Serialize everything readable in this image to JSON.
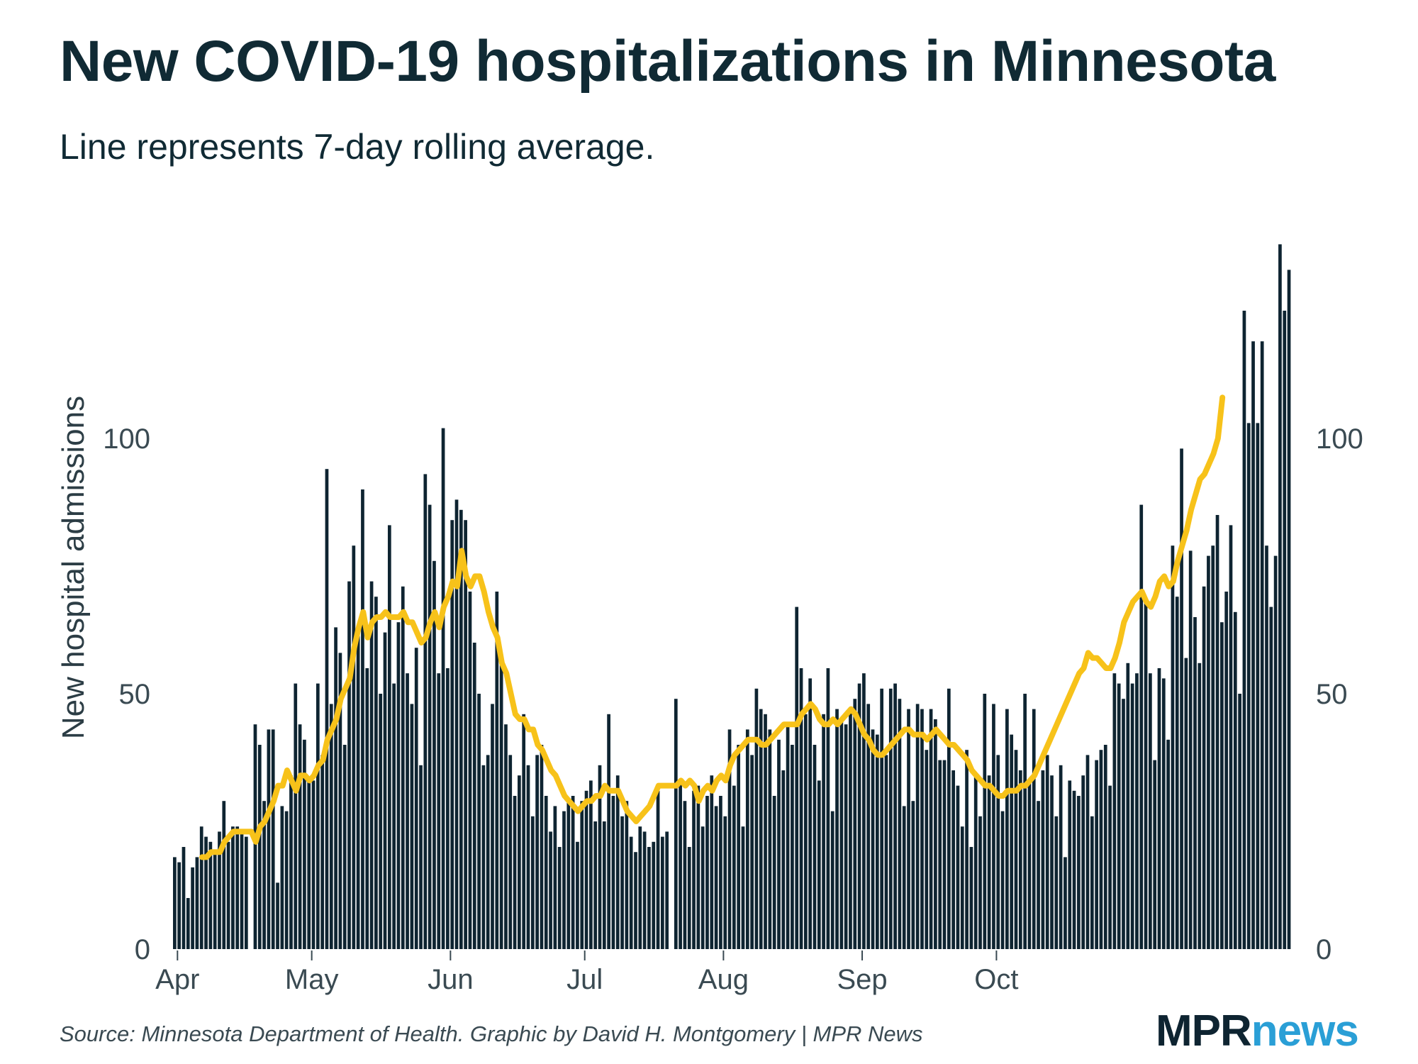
{
  "title": "New COVID-19 hospitalizations in Minnesota",
  "subtitle": "Line represents 7-day rolling average.",
  "source": "Source: Minnesota Department of Health. Graphic by David H. Montgomery | MPR News",
  "logo": {
    "part1": "MPR",
    "part2": "news"
  },
  "colors": {
    "bar": "#0e2431",
    "line": "#f7c21a",
    "text": "#102a34",
    "logo_news": "#2a9fd6"
  },
  "chart_data": {
    "type": "bar",
    "ylabel": "New hospital admissions",
    "xlabel": "",
    "ylim": [
      0,
      140
    ],
    "yticks": [
      0,
      50,
      100
    ],
    "x_start": "2020-03-31",
    "xticks": [
      {
        "label": "Apr",
        "date": "2020-04-01"
      },
      {
        "label": "May",
        "date": "2020-05-01"
      },
      {
        "label": "Jun",
        "date": "2020-06-01"
      },
      {
        "label": "Jul",
        "date": "2020-07-01"
      },
      {
        "label": "Aug",
        "date": "2020-08-01"
      },
      {
        "label": "Sep",
        "date": "2020-09-01"
      },
      {
        "label": "Oct",
        "date": "2020-10-01"
      }
    ],
    "series": [
      {
        "type": "bar",
        "values": [
          18,
          17,
          20,
          10,
          16,
          18,
          24,
          22,
          21,
          19,
          23,
          29,
          21,
          24,
          24,
          23,
          22,
          null,
          44,
          40,
          29,
          43,
          43,
          13,
          28,
          27,
          34,
          52,
          44,
          41,
          33,
          33,
          52,
          38,
          94,
          48,
          63,
          58,
          40,
          72,
          79,
          63,
          90,
          55,
          72,
          69,
          50,
          62,
          83,
          52,
          64,
          71,
          54,
          48,
          59,
          36,
          93,
          87,
          76,
          54,
          102,
          55,
          84,
          88,
          86,
          84,
          70,
          60,
          50,
          36,
          38,
          48,
          70,
          56,
          44,
          38,
          30,
          34,
          46,
          36,
          26,
          38,
          40,
          30,
          23,
          28,
          20,
          27,
          29,
          30,
          21,
          29,
          31,
          33,
          25,
          36,
          25,
          46,
          30,
          34,
          26,
          29,
          22,
          19,
          24,
          23,
          20,
          21,
          31,
          22,
          23,
          null,
          49,
          33,
          29,
          20,
          31,
          32,
          24,
          30,
          34,
          28,
          30,
          26,
          43,
          32,
          40,
          24,
          43,
          38,
          51,
          47,
          46,
          43,
          30,
          41,
          35,
          44,
          40,
          67,
          55,
          46,
          53,
          40,
          33,
          46,
          55,
          27,
          47,
          45,
          44,
          47,
          49,
          52,
          54,
          48,
          43,
          42,
          51,
          38,
          51,
          52,
          49,
          28,
          47,
          29,
          48,
          47,
          39,
          47,
          45,
          37,
          37,
          51,
          35,
          32,
          24,
          39,
          20,
          34,
          26,
          50,
          34,
          48,
          38,
          27,
          47,
          42,
          39,
          35,
          50,
          33,
          47,
          29,
          35,
          38,
          34,
          26,
          36,
          18,
          33,
          31,
          30,
          34,
          38,
          26,
          37,
          39,
          40,
          32,
          54,
          52,
          49,
          56,
          52,
          54,
          87,
          68,
          54,
          37,
          55,
          53,
          41,
          79,
          69,
          98,
          57,
          78,
          65,
          56,
          71,
          77,
          79,
          85,
          64,
          70,
          83,
          66,
          50,
          125,
          103,
          119,
          103,
          119,
          79,
          67,
          77,
          138,
          125,
          133
        ],
        "color": "#0e2431"
      },
      {
        "type": "line",
        "values": [
          null,
          null,
          null,
          null,
          null,
          null,
          18,
          18,
          19,
          19,
          19,
          21,
          22,
          23,
          23,
          23,
          23,
          23,
          21,
          24,
          25,
          27,
          29,
          32,
          32,
          35,
          33,
          31,
          34,
          34,
          33,
          34,
          36,
          37,
          41,
          43,
          45,
          49,
          51,
          53,
          59,
          63,
          66,
          61,
          64,
          65,
          65,
          66,
          65,
          65,
          65,
          66,
          64,
          64,
          62,
          60,
          61,
          64,
          66,
          63,
          67,
          69,
          72,
          71,
          78,
          73,
          71,
          73,
          73,
          70,
          66,
          63,
          61,
          56,
          54,
          50,
          46,
          45,
          45,
          43,
          43,
          40,
          39,
          37,
          35,
          34,
          32,
          30,
          29,
          28,
          27,
          28,
          29,
          29,
          30,
          30,
          32,
          31,
          31,
          31,
          29,
          27,
          26,
          25,
          26,
          27,
          28,
          30,
          32,
          32,
          32,
          32,
          32,
          33,
          32,
          33,
          32,
          29,
          31,
          32,
          31,
          33,
          34,
          33,
          36,
          38,
          39,
          40,
          41,
          41,
          41,
          40,
          40,
          41,
          42,
          43,
          44,
          44,
          44,
          44,
          46,
          47,
          48,
          47,
          45,
          44,
          44,
          45,
          44,
          45,
          46,
          47,
          46,
          44,
          42,
          41,
          39,
          38,
          38,
          39,
          40,
          41,
          42,
          43,
          43,
          42,
          42,
          42,
          41,
          42,
          43,
          42,
          41,
          40,
          40,
          39,
          38,
          37,
          35,
          34,
          33,
          32,
          32,
          31,
          30,
          30,
          31,
          31,
          31,
          32,
          32,
          33,
          34,
          36,
          38,
          40,
          42,
          44,
          46,
          48,
          50,
          52,
          54,
          55,
          58,
          57,
          57,
          56,
          55,
          55,
          57,
          60,
          64,
          66,
          68,
          69,
          70,
          68,
          67,
          69,
          72,
          73,
          71,
          72,
          76,
          79,
          82,
          86,
          89,
          92,
          93,
          95,
          97,
          100,
          108
        ],
        "color": "#f7c21a"
      }
    ]
  }
}
